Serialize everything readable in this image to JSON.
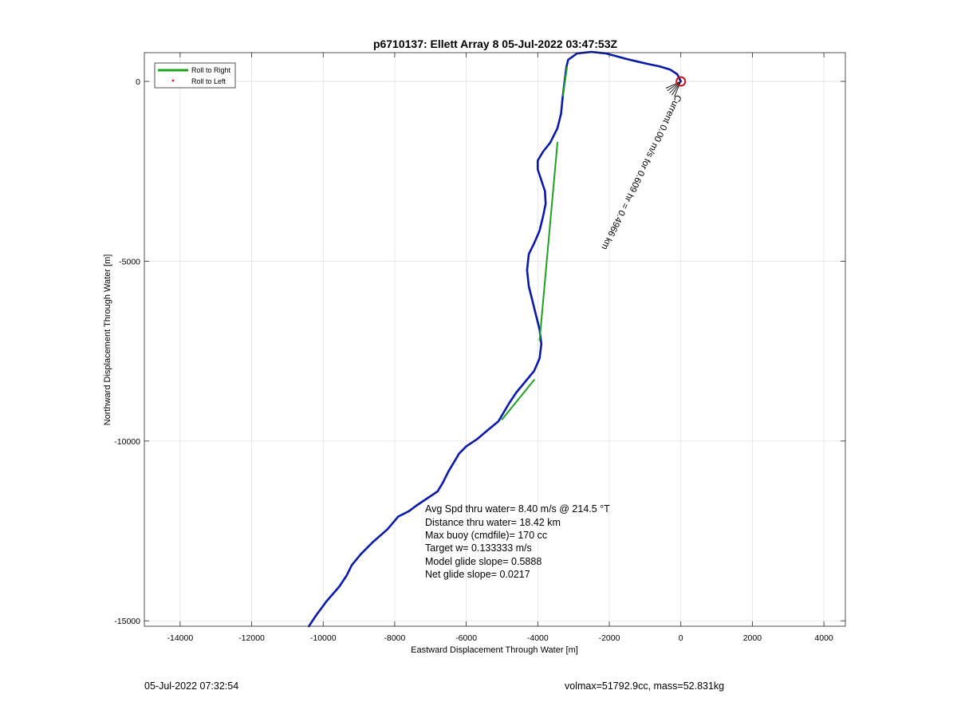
{
  "chart_data": {
    "type": "line",
    "title": "p6710137: Ellett Array 8 05-Jul-2022 03:47:53Z",
    "xlabel": "Eastward Displacement Through Water [m]",
    "ylabel": "Northward Displacement Through Water [m]",
    "xlim": [
      -15000,
      4600
    ],
    "ylim": [
      -15150,
      800
    ],
    "xticks": [
      -14000,
      -12000,
      -10000,
      -8000,
      -6000,
      -4000,
      -2000,
      0,
      2000,
      4000
    ],
    "yticks": [
      0,
      -5000,
      -10000,
      -15000
    ],
    "grid": true,
    "legend_position": "top-left",
    "legend": [
      "Roll to Right",
      "Roll to Left"
    ],
    "colors": {
      "track": "#0a1aa8",
      "roll_right": "#1fa01f",
      "roll_left": "#e01010",
      "start_marker": "#c0101a",
      "grid": "#e2e2e2"
    },
    "track": {
      "x": [
        -10400,
        -10200,
        -9900,
        -9550,
        -9350,
        -9200,
        -8950,
        -8600,
        -8200,
        -7900,
        -7600,
        -7400,
        -7100,
        -6800,
        -6650,
        -6500,
        -6350,
        -6200,
        -6000,
        -5700,
        -5400,
        -5100,
        -4950,
        -4800,
        -4600,
        -4350,
        -4100,
        -3950,
        -3900,
        -3950,
        -4050,
        -4150,
        -4250,
        -4300,
        -4250,
        -4100,
        -3950,
        -3850,
        -3780,
        -3800,
        -3900,
        -4000,
        -4000,
        -3850,
        -3650,
        -3450,
        -3350,
        -3300,
        -3250,
        -3200,
        -3150,
        -2900,
        -2500,
        -2100,
        -1800,
        -1500,
        -1200,
        -900,
        -600,
        -300,
        -100,
        0
      ],
      "y": [
        -15150,
        -14850,
        -14450,
        -14050,
        -13750,
        -13450,
        -13150,
        -12800,
        -12450,
        -12100,
        -11950,
        -11800,
        -11600,
        -11400,
        -11150,
        -10850,
        -10600,
        -10350,
        -10150,
        -9950,
        -9700,
        -9450,
        -9200,
        -8950,
        -8650,
        -8350,
        -8050,
        -7700,
        -7300,
        -6900,
        -6500,
        -6100,
        -5700,
        -5250,
        -4800,
        -4500,
        -4150,
        -3750,
        -3400,
        -3050,
        -2750,
        -2450,
        -2200,
        -1950,
        -1700,
        -1300,
        -900,
        -400,
        0,
        400,
        600,
        780,
        820,
        780,
        700,
        620,
        550,
        480,
        420,
        330,
        200,
        0
      ]
    },
    "roll_right_segments": [
      {
        "x": [
          -5000,
          -4100
        ],
        "y": [
          -9400,
          -8300
        ]
      },
      {
        "x": [
          -3950,
          -3450
        ],
        "y": [
          -7200,
          -1700
        ]
      },
      {
        "x": [
          -3300,
          -3180
        ],
        "y": [
          -400,
          400
        ]
      }
    ],
    "start_marker": {
      "x": 0,
      "y": 0
    },
    "diagonal_annotation": "Current 0.00 m/s for 0.609 hr = 0.4966 km",
    "info_text": [
      "Avg Spd thru water=  8.40 m/s @ 214.5 °T",
      "Distance thru water= 18.42 km",
      "Max buoy (cmdfile)= 170 cc",
      "Target w= 0.133333 m/s",
      "Model glide slope= 0.5888",
      "Net glide slope= 0.0217"
    ]
  },
  "footer": {
    "timestamp": "05-Jul-2022 07:32:54",
    "summary": "volmax=51792.9cc, mass=52.831kg"
  }
}
